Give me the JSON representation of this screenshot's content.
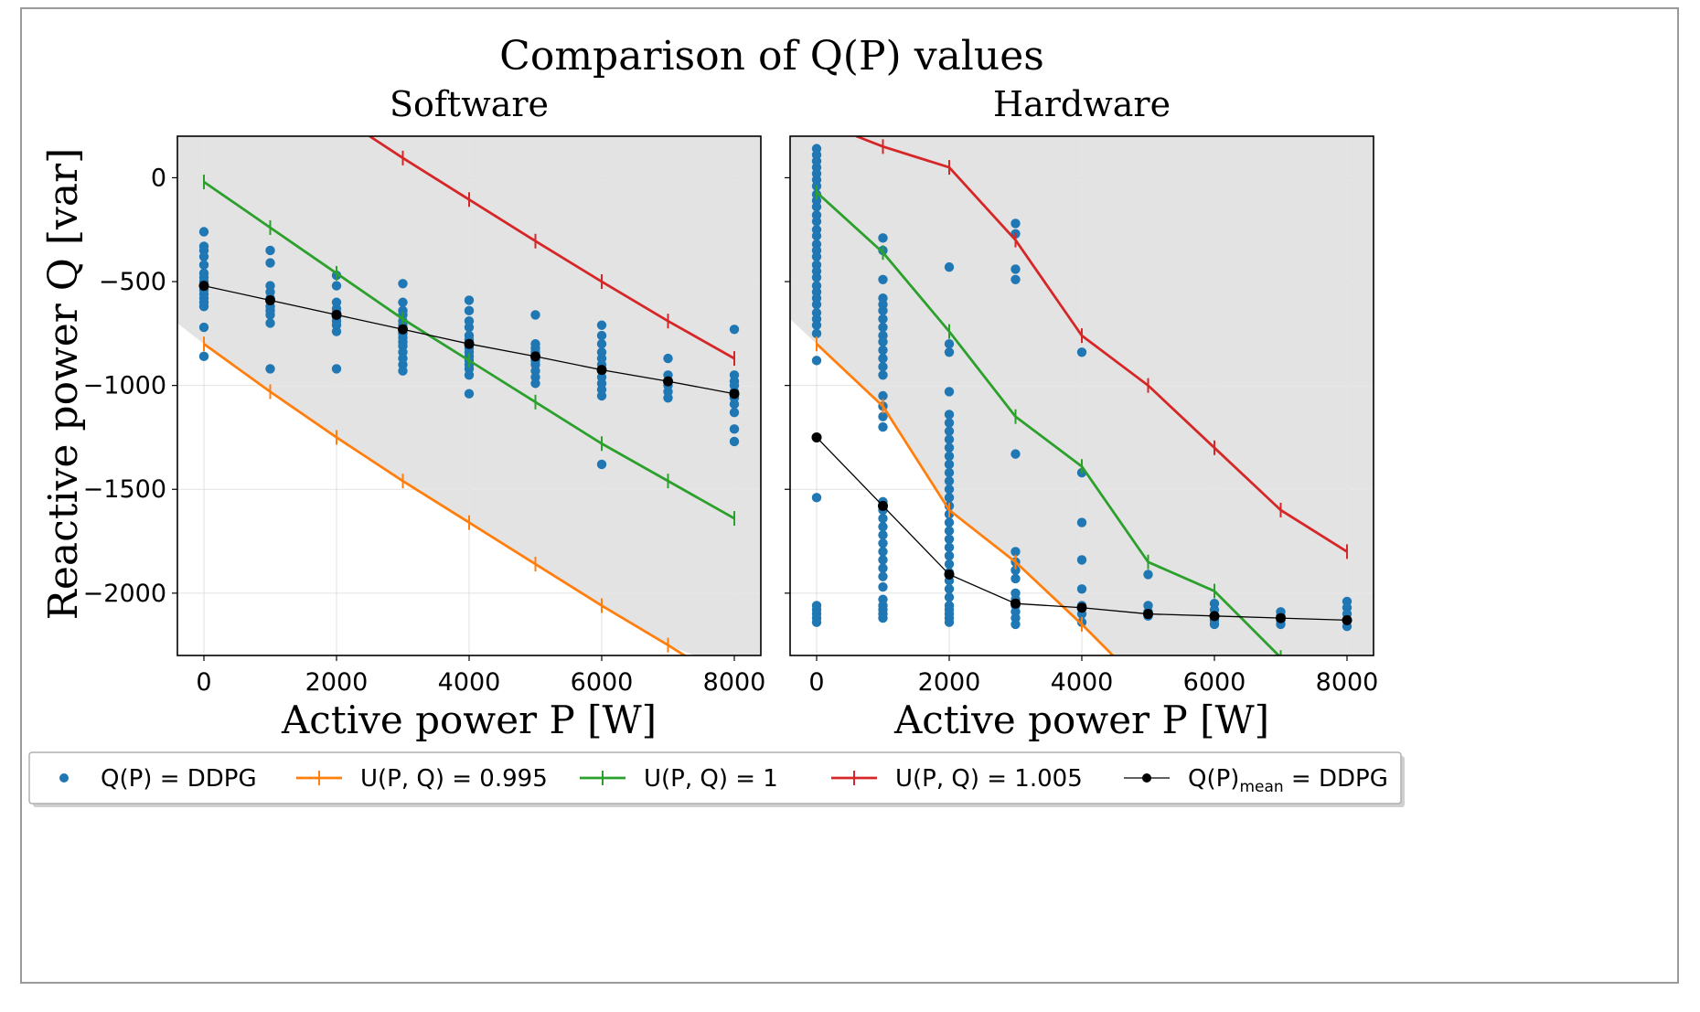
{
  "chart_data": {
    "title": "Comparison of Q(P) values",
    "ylabel": "Reactive power Q [var]",
    "colors": {
      "scatter": "#1f77b4",
      "u0995": "#ff7f0e",
      "u1": "#2ca02c",
      "u1005": "#d62728",
      "mean": "#000000",
      "band": "#e3e3e3"
    },
    "legend": {
      "placement": "bottom",
      "entries": [
        {
          "key": "scatter",
          "label": "Q(P) = DDPG",
          "style": "dot"
        },
        {
          "key": "u0995",
          "label": "U(P, Q) = 0.995",
          "style": "line"
        },
        {
          "key": "u1",
          "label": "U(P, Q) = 1",
          "style": "line"
        },
        {
          "key": "u1005",
          "label": "U(P, Q) = 1.005",
          "style": "line"
        },
        {
          "key": "mean",
          "label": "Q(P)",
          "sub": "mean",
          "suffix": " = DDPG",
          "style": "line-dot"
        }
      ]
    },
    "panels": [
      {
        "type": "scatter",
        "title": "Software",
        "xlabel": "Active power P [W]",
        "xlim": [
          -400,
          8400
        ],
        "ylim": [
          -2300,
          200
        ],
        "xticks": [
          0,
          2000,
          4000,
          6000,
          8000
        ],
        "yticks": [
          0,
          -500,
          -1000,
          -1500,
          -2000
        ],
        "grid": true,
        "band": {
          "upper": [
            [
              -400,
              200
            ],
            [
              8400,
              200
            ],
            [
              8400,
              -1000
            ]
          ],
          "lower": [
            [
              -400,
              -700
            ],
            [
              0,
              -800
            ],
            [
              1000,
              -1030
            ],
            [
              2000,
              -1250
            ],
            [
              3000,
              -1460
            ],
            [
              4000,
              -1660
            ],
            [
              5000,
              -1860
            ],
            [
              6000,
              -2060
            ],
            [
              7000,
              -2250
            ],
            [
              7400,
              -2300
            ],
            [
              8400,
              -2300
            ]
          ]
        },
        "series": [
          {
            "key": "u0995",
            "name": "U(P, Q) = 0.995",
            "x": [
              0,
              1000,
              2000,
              3000,
              4000,
              5000,
              6000,
              7000,
              7400
            ],
            "y": [
              -800,
              -1030,
              -1250,
              -1460,
              -1660,
              -1860,
              -2060,
              -2250,
              -2330
            ]
          },
          {
            "key": "u1",
            "name": "U(P, Q) = 1",
            "x": [
              0,
              1000,
              2000,
              3000,
              4000,
              5000,
              6000,
              7000,
              8000
            ],
            "y": [
              -20,
              -240,
              -460,
              -680,
              -880,
              -1080,
              -1280,
              -1460,
              -1640
            ]
          },
          {
            "key": "u1005",
            "name": "U(P, Q) = 1.005",
            "x": [
              2500,
              3000,
              4000,
              5000,
              6000,
              7000,
              8000
            ],
            "y": [
              200,
              95,
              -105,
              -305,
              -500,
              -690,
              -870
            ]
          },
          {
            "key": "mean",
            "name": "Q(P)mean = DDPG",
            "x": [
              0,
              1000,
              2000,
              3000,
              4000,
              5000,
              6000,
              7000,
              8000
            ],
            "y": [
              -520,
              -590,
              -660,
              -730,
              -800,
              -860,
              -925,
              -980,
              -1040
            ]
          }
        ],
        "scatter": [
          {
            "x": 0,
            "y": [
              -260,
              -330,
              -350,
              -380,
              -420,
              -460,
              -480,
              -500,
              -520,
              -540,
              -560,
              -580,
              -600,
              -620,
              -720,
              -860
            ]
          },
          {
            "x": 1000,
            "y": [
              -350,
              -410,
              -520,
              -550,
              -580,
              -620,
              -640,
              -660,
              -700,
              -920
            ]
          },
          {
            "x": 2000,
            "y": [
              -470,
              -520,
              -600,
              -630,
              -650,
              -670,
              -690,
              -710,
              -740,
              -920
            ]
          },
          {
            "x": 3000,
            "y": [
              -510,
              -600,
              -640,
              -660,
              -690,
              -710,
              -730,
              -750,
              -770,
              -790,
              -810,
              -840,
              -870,
              -900,
              -930
            ]
          },
          {
            "x": 4000,
            "y": [
              -590,
              -640,
              -690,
              -720,
              -760,
              -780,
              -800,
              -820,
              -840,
              -860,
              -880,
              -900,
              -920,
              -950,
              -1040
            ]
          },
          {
            "x": 5000,
            "y": [
              -660,
              -800,
              -820,
              -840,
              -860,
              -880,
              -900,
              -930,
              -960,
              -990
            ]
          },
          {
            "x": 6000,
            "y": [
              -710,
              -760,
              -800,
              -840,
              -870,
              -900,
              -930,
              -960,
              -990,
              -1020,
              -1050,
              -1380
            ]
          },
          {
            "x": 7000,
            "y": [
              -870,
              -950,
              -980,
              -1000,
              -1030,
              -1060
            ]
          },
          {
            "x": 8000,
            "y": [
              -730,
              -950,
              -980,
              -1000,
              -1030,
              -1060,
              -1090,
              -1130,
              -1210,
              -1270
            ]
          }
        ]
      },
      {
        "type": "scatter",
        "title": "Hardware",
        "xlabel": "Active power P [W]",
        "xlim": [
          -400,
          8400
        ],
        "ylim": [
          -2300,
          200
        ],
        "xticks": [
          0,
          2000,
          4000,
          6000,
          8000
        ],
        "yticks": [
          0,
          -500,
          -1000,
          -1500,
          -2000
        ],
        "grid": true,
        "band": {
          "upper": [
            [
              -400,
              200
            ],
            [
              8400,
              200
            ],
            [
              8400,
              -1900
            ]
          ],
          "lower": [
            [
              -400,
              -680
            ],
            [
              0,
              -800
            ],
            [
              1000,
              -1100
            ],
            [
              2000,
              -1600
            ],
            [
              3000,
              -1850
            ],
            [
              4000,
              -2150
            ],
            [
              4500,
              -2300
            ],
            [
              8400,
              -2300
            ]
          ]
        },
        "series": [
          {
            "key": "u0995",
            "name": "U(P, Q) = 0.995",
            "x": [
              0,
              1000,
              2000,
              3000,
              4000,
              4500
            ],
            "y": [
              -800,
              -1100,
              -1600,
              -1850,
              -2150,
              -2310
            ]
          },
          {
            "key": "u1",
            "name": "U(P, Q) = 1",
            "x": [
              0,
              1000,
              2000,
              3000,
              4000,
              5000,
              6000,
              7000
            ],
            "y": [
              -70,
              -360,
              -740,
              -1150,
              -1390,
              -1850,
              -1990,
              -2310
            ]
          },
          {
            "key": "u1005",
            "name": "U(P, Q) = 1.005",
            "x": [
              600,
              1000,
              2000,
              3000,
              4000,
              5000,
              6000,
              7000,
              8000
            ],
            "y": [
              200,
              150,
              50,
              -300,
              -760,
              -1000,
              -1300,
              -1600,
              -1800
            ]
          },
          {
            "key": "mean",
            "name": "Q(P)mean = DDPG",
            "x": [
              0,
              1000,
              2000,
              3000,
              4000,
              5000,
              6000,
              7000,
              8000
            ],
            "y": [
              -1250,
              -1580,
              -1910,
              -2050,
              -2070,
              -2100,
              -2110,
              -2120,
              -2130
            ]
          }
        ],
        "scatter": [
          {
            "x": 0,
            "y": [
              140,
              110,
              80,
              50,
              20,
              -10,
              -40,
              -80,
              -110,
              -140,
              -180,
              -210,
              -250,
              -280,
              -320,
              -350,
              -380,
              -420,
              -450,
              -480,
              -520,
              -550,
              -580,
              -610,
              -650,
              -680,
              -710,
              -750,
              -880,
              -1540,
              -2060,
              -2080,
              -2100,
              -2120,
              -2140
            ]
          },
          {
            "x": 1000,
            "y": [
              -290,
              -350,
              -490,
              -580,
              -610,
              -640,
              -680,
              -720,
              -760,
              -790,
              -830,
              -870,
              -910,
              -950,
              -1050,
              -1100,
              -1150,
              -1200,
              -1560,
              -1600,
              -1640,
              -1680,
              -1720,
              -1760,
              -1800,
              -1840,
              -1880,
              -1920,
              -1970,
              -2030,
              -2060,
              -2080,
              -2100,
              -2120
            ]
          },
          {
            "x": 2000,
            "y": [
              -430,
              -800,
              -840,
              -1030,
              -1140,
              -1180,
              -1220,
              -1260,
              -1300,
              -1340,
              -1380,
              -1420,
              -1460,
              -1500,
              -1540,
              -1580,
              -1620,
              -1660,
              -1700,
              -1740,
              -1780,
              -1820,
              -1860,
              -1900,
              -1940,
              -1980,
              -2020,
              -2060,
              -2080,
              -2100,
              -2120,
              -2140
            ]
          },
          {
            "x": 3000,
            "y": [
              -220,
              -270,
              -440,
              -490,
              -1330,
              -1800,
              -1850,
              -1890,
              -1930,
              -2000,
              -2030,
              -2060,
              -2090,
              -2120,
              -2150
            ]
          },
          {
            "x": 4000,
            "y": [
              -840,
              -1420,
              -1660,
              -1840,
              -1980,
              -2060,
              -2100,
              -2140
            ]
          },
          {
            "x": 5000,
            "y": [
              -1910,
              -2060,
              -2090,
              -2110
            ]
          },
          {
            "x": 6000,
            "y": [
              -2050,
              -2080,
              -2110,
              -2130,
              -2150
            ]
          },
          {
            "x": 7000,
            "y": [
              -2090,
              -2110,
              -2130,
              -2150
            ]
          },
          {
            "x": 8000,
            "y": [
              -2040,
              -2070,
              -2100,
              -2130,
              -2160
            ]
          }
        ]
      }
    ]
  }
}
